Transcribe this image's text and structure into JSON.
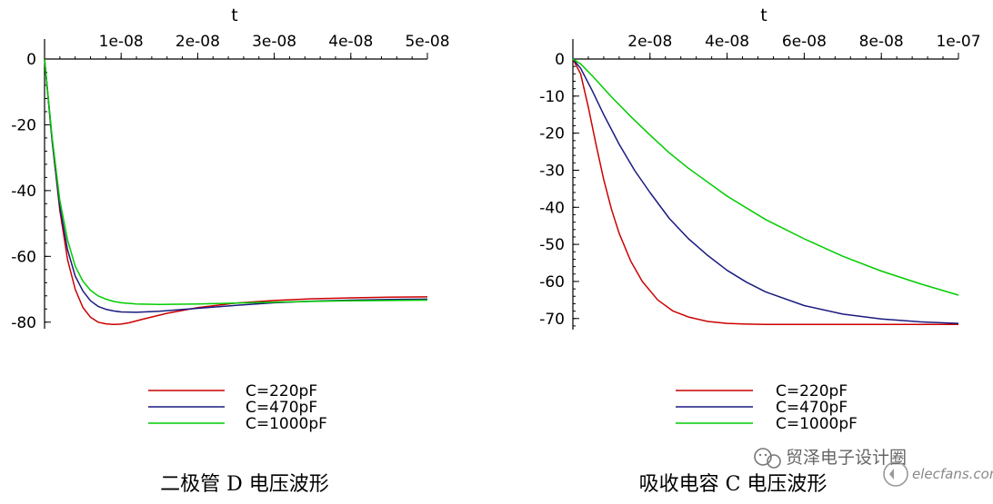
{
  "chart_data": [
    {
      "type": "line",
      "title": "",
      "xlabel": "t",
      "ylabel": "",
      "xlim": [
        0,
        5e-08
      ],
      "ylim": [
        -82,
        0
      ],
      "x_ticks": [
        1e-08,
        2e-08,
        3e-08,
        4e-08,
        5e-08
      ],
      "x_tick_labels": [
        "1e-08",
        "2e-08",
        "3e-08",
        "4e-08",
        "5e-08"
      ],
      "y_ticks": [
        0,
        -20,
        -40,
        -60,
        -80
      ],
      "y_tick_labels": [
        "0",
        "-20",
        "-40",
        "-60",
        "-80"
      ],
      "caption": "二极管 D 电压波形",
      "series": [
        {
          "name": "C=220pF",
          "color": "#cc0000",
          "x": [
            0,
            1e-09,
            2e-09,
            3e-09,
            4e-09,
            5e-09,
            6e-09,
            7e-09,
            8e-09,
            9e-09,
            1e-08,
            1.1e-08,
            1.3e-08,
            1.6e-08,
            2e-08,
            2.5e-08,
            3e-08,
            3.5e-08,
            4e-08,
            4.5e-08,
            5e-08
          ],
          "y": [
            0,
            -25,
            -46,
            -61,
            -70,
            -75.5,
            -78.5,
            -80,
            -80.5,
            -80.7,
            -80.6,
            -80.2,
            -79,
            -77.3,
            -75.6,
            -74.2,
            -73.4,
            -72.9,
            -72.6,
            -72.4,
            -72.3
          ]
        },
        {
          "name": "C=470pF",
          "color": "#1a1a80",
          "x": [
            0,
            1e-09,
            2e-09,
            3e-09,
            4e-09,
            5e-09,
            6e-09,
            7e-09,
            8e-09,
            9e-09,
            1e-08,
            1.2e-08,
            1.5e-08,
            2e-08,
            2.5e-08,
            3e-08,
            3.5e-08,
            4e-08,
            4.5e-08,
            5e-08
          ],
          "y": [
            0,
            -25,
            -45,
            -58,
            -66,
            -70.5,
            -73.5,
            -75.2,
            -76.1,
            -76.6,
            -76.9,
            -77,
            -76.7,
            -75.8,
            -74.9,
            -74.1,
            -73.6,
            -73.3,
            -73.1,
            -73
          ],
          "dummy": null
        },
        {
          "name": "C=1000pF",
          "color": "#00cc00",
          "x": [
            0,
            1e-09,
            2e-09,
            3e-09,
            4e-09,
            5e-09,
            6e-09,
            7e-09,
            8e-09,
            9e-09,
            1e-08,
            1.2e-08,
            1.5e-08,
            2e-08,
            2.5e-08,
            3e-08,
            3.5e-08,
            4e-08,
            4.5e-08,
            5e-08
          ],
          "y": [
            0,
            -24,
            -43,
            -55,
            -63,
            -67.5,
            -70.3,
            -72,
            -73,
            -73.7,
            -74.1,
            -74.5,
            -74.6,
            -74.5,
            -74.2,
            -73.9,
            -73.7,
            -73.5,
            -73.4,
            -73.3
          ]
        }
      ]
    },
    {
      "type": "line",
      "title": "",
      "xlabel": "t",
      "ylabel": "",
      "xlim": [
        0,
        1e-07
      ],
      "ylim": [
        -73,
        0
      ],
      "x_ticks": [
        2e-08,
        4e-08,
        6e-08,
        8e-08,
        1e-07
      ],
      "x_tick_labels": [
        "2e-08",
        "4e-08",
        "6e-08",
        "8e-08",
        "1e-07"
      ],
      "y_ticks": [
        0,
        -10,
        -20,
        -30,
        -40,
        -50,
        -60,
        -70
      ],
      "y_tick_labels": [
        "0",
        "-10",
        "-20",
        "-30",
        "-40",
        "-50",
        "-60",
        "-70"
      ],
      "caption": "吸收电容 C 电压波形",
      "series": [
        {
          "name": "C=220pF",
          "color": "#cc0000",
          "x": [
            0,
            2e-09,
            4e-09,
            6e-09,
            8e-09,
            1e-08,
            1.2e-08,
            1.5e-08,
            1.8e-08,
            2.2e-08,
            2.6e-08,
            3e-08,
            3.5e-08,
            4e-08,
            4.5e-08,
            5e-08,
            6e-08,
            7e-08,
            8e-08,
            9e-08,
            1e-07
          ],
          "y": [
            0,
            -4,
            -13,
            -23,
            -32.5,
            -40.5,
            -47,
            -54.5,
            -60,
            -65,
            -68,
            -69.6,
            -70.8,
            -71.3,
            -71.5,
            -71.6,
            -71.6,
            -71.6,
            -71.6,
            -71.6,
            -71.6
          ]
        },
        {
          "name": "C=470pF",
          "color": "#1a1a80",
          "x": [
            0,
            2e-09,
            5e-09,
            8e-09,
            1.2e-08,
            1.6e-08,
            2e-08,
            2.5e-08,
            3e-08,
            3.5e-08,
            4e-08,
            4.5e-08,
            5e-08,
            6e-08,
            7e-08,
            8e-08,
            9e-08,
            1e-07
          ],
          "y": [
            0,
            -2.5,
            -8.5,
            -15,
            -23,
            -30,
            -36,
            -43,
            -48.5,
            -53,
            -57,
            -60.2,
            -62.8,
            -66.5,
            -68.8,
            -70.1,
            -70.9,
            -71.3
          ]
        },
        {
          "name": "C=1000pF",
          "color": "#00cc00",
          "x": [
            0,
            2e-09,
            5e-09,
            1e-08,
            1.5e-08,
            2e-08,
            2.5e-08,
            3e-08,
            4e-08,
            5e-08,
            6e-08,
            7e-08,
            8e-08,
            9e-08,
            1e-07
          ],
          "y": [
            0,
            -1.3,
            -4.5,
            -10.2,
            -15.5,
            -20.5,
            -25.3,
            -29.5,
            -37,
            -43.3,
            -48.5,
            -53.2,
            -57.2,
            -60.6,
            -63.7
          ]
        }
      ]
    }
  ],
  "watermark": {
    "text": "贸泽电子设计圈",
    "site": "elecfans.com"
  }
}
